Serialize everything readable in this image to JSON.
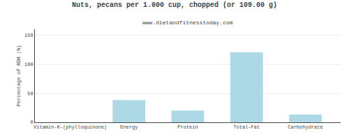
{
  "chart_data": {
    "type": "bar",
    "title": "Nuts, pecans per 1.000 cup, chopped (or 109.00 g)",
    "subtitle": "www.dietandfitnesstoday.com",
    "categories": [
      "Vitamin-K-(phylloquinone)",
      "Energy",
      "Protein",
      "Total-Fat",
      "Carbohydrate"
    ],
    "values": [
      0,
      38,
      20,
      120,
      13
    ],
    "color": "#add8e6",
    "ylabel": "Percentage of RDH (%)",
    "ylim": [
      0,
      160
    ],
    "yticks": [
      0,
      50,
      100,
      150
    ],
    "grid": true
  }
}
